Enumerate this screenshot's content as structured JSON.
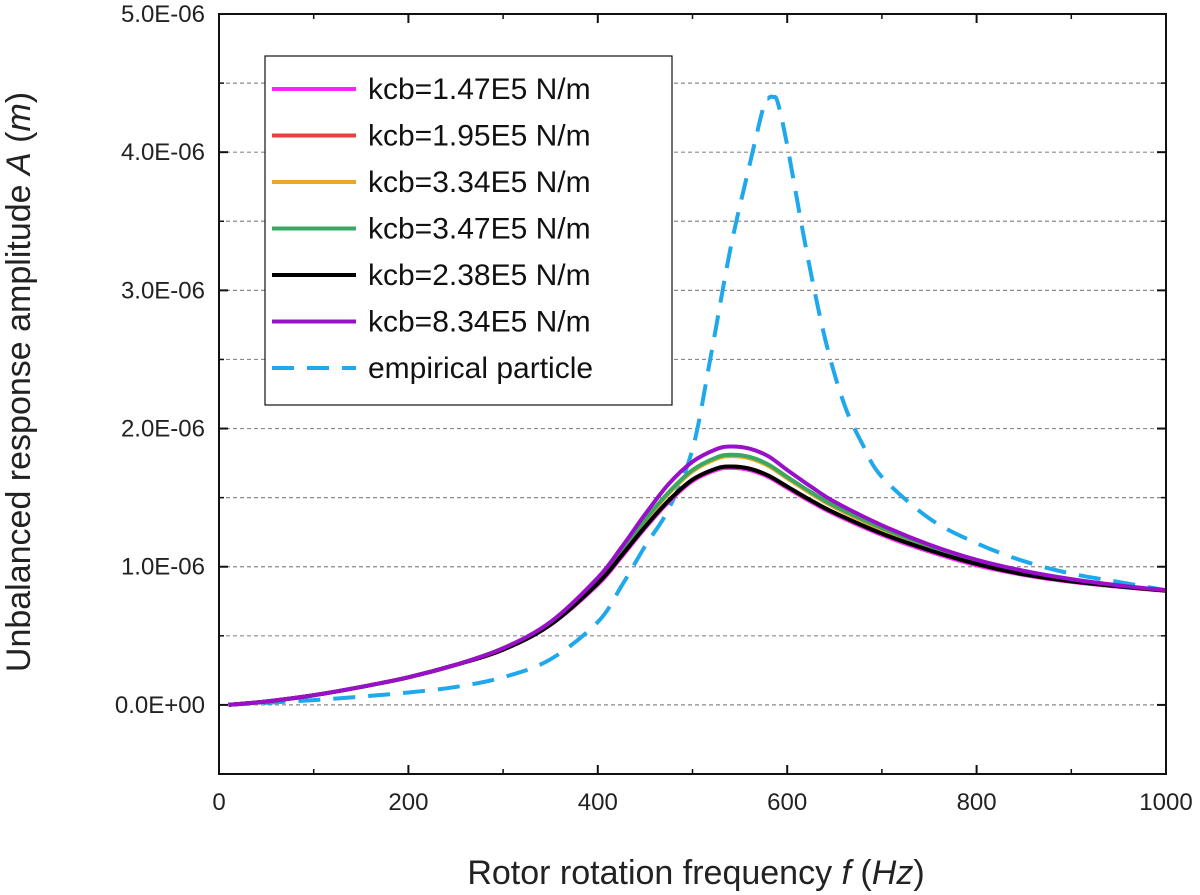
{
  "chart_data": {
    "type": "line",
    "xlabel": {
      "prefix": "Rotor rotation frequency ",
      "var": "f",
      "unit": "Hz"
    },
    "ylabel": {
      "prefix": "Unbalanced response amplitude ",
      "var": "A",
      "unit": "m"
    },
    "xlim": [
      0,
      1000
    ],
    "ylim": [
      -5e-07,
      5e-06
    ],
    "xticks": [
      0,
      200,
      400,
      600,
      800,
      1000
    ],
    "xtick_labels": [
      "0",
      "200",
      "400",
      "600",
      "800",
      "1000"
    ],
    "yticks": [
      0,
      1e-06,
      2e-06,
      3e-06,
      4e-06,
      5e-06
    ],
    "ytick_labels": [
      "0.0E+00",
      "1.0E-06",
      "2.0E-06",
      "3.0E-06",
      "4.0E-06",
      "5.0E-06"
    ],
    "grid": "horizontal dashed",
    "legend_position": "top-left",
    "x": [
      10,
      50,
      100,
      150,
      200,
      250,
      300,
      350,
      400,
      425,
      450,
      475,
      500,
      525,
      540,
      560,
      580,
      600,
      625,
      650,
      700,
      750,
      800,
      850,
      900,
      950,
      1000
    ],
    "series": [
      {
        "name": "kcb=1.47E5 N/m",
        "color": "#ff22ff",
        "dash": "solid",
        "values": [
          1e-09,
          2.5e-08,
          7e-08,
          1.3e-07,
          2e-07,
          2.9e-07,
          4e-07,
          5.8e-07,
          8.7e-07,
          1.07e-06,
          1.28e-06,
          1.47e-06,
          1.62e-06,
          1.7e-06,
          1.715e-06,
          1.7e-06,
          1.65e-06,
          1.57e-06,
          1.47e-06,
          1.38e-06,
          1.23e-06,
          1.11e-06,
          1.01e-06,
          9.4e-07,
          8.9e-07,
          8.55e-07,
          8.25e-07
        ]
      },
      {
        "name": "kcb=1.95E5 N/m",
        "color": "#e8403c",
        "dash": "solid",
        "values": [
          1e-09,
          2.5e-08,
          7e-08,
          1.3e-07,
          2e-07,
          2.9e-07,
          4e-07,
          5.8e-07,
          8.8e-07,
          1.08e-06,
          1.29e-06,
          1.48e-06,
          1.63e-06,
          1.71e-06,
          1.725e-06,
          1.71e-06,
          1.66e-06,
          1.58e-06,
          1.48e-06,
          1.39e-06,
          1.24e-06,
          1.12e-06,
          1.02e-06,
          9.45e-07,
          8.95e-07,
          8.58e-07,
          8.27e-07
        ]
      },
      {
        "name": "kcb=3.34E5 N/m",
        "color": "#e8a823",
        "dash": "solid",
        "values": [
          1e-09,
          2.5e-08,
          7e-08,
          1.3e-07,
          2e-07,
          2.9e-07,
          4.1e-07,
          5.9e-07,
          9e-07,
          1.11e-06,
          1.33e-06,
          1.53e-06,
          1.69e-06,
          1.78e-06,
          1.8e-06,
          1.785e-06,
          1.73e-06,
          1.64e-06,
          1.53e-06,
          1.43e-06,
          1.27e-06,
          1.14e-06,
          1.04e-06,
          9.6e-07,
          9e-07,
          8.6e-07,
          8.28e-07
        ]
      },
      {
        "name": "kcb=3.47E5 N/m",
        "color": "#3aa860",
        "dash": "solid",
        "values": [
          1e-09,
          2.5e-08,
          7e-08,
          1.3e-07,
          2e-07,
          2.9e-07,
          4.1e-07,
          5.9e-07,
          9e-07,
          1.11e-06,
          1.34e-06,
          1.54e-06,
          1.7e-06,
          1.79e-06,
          1.81e-06,
          1.795e-06,
          1.74e-06,
          1.65e-06,
          1.54e-06,
          1.44e-06,
          1.28e-06,
          1.15e-06,
          1.045e-06,
          9.65e-07,
          9.05e-07,
          8.62e-07,
          8.28e-07
        ]
      },
      {
        "name": "kcb=2.38E5 N/m",
        "color": "#000000",
        "dash": "solid",
        "values": [
          1e-09,
          2.5e-08,
          7e-08,
          1.3e-07,
          2e-07,
          2.9e-07,
          4e-07,
          5.8e-07,
          8.8e-07,
          1.08e-06,
          1.29e-06,
          1.48e-06,
          1.63e-06,
          1.71e-06,
          1.725e-06,
          1.71e-06,
          1.66e-06,
          1.58e-06,
          1.48e-06,
          1.39e-06,
          1.24e-06,
          1.12e-06,
          1.02e-06,
          9.45e-07,
          8.95e-07,
          8.58e-07,
          8.27e-07
        ]
      },
      {
        "name": "kcb=8.34E5 N/m",
        "color": "#9a10c8",
        "dash": "solid",
        "values": [
          1e-09,
          2.5e-08,
          7e-08,
          1.3e-07,
          2e-07,
          2.9e-07,
          4.1e-07,
          6e-07,
          9.2e-07,
          1.14e-06,
          1.38e-06,
          1.6e-06,
          1.76e-06,
          1.85e-06,
          1.87e-06,
          1.855e-06,
          1.8e-06,
          1.7e-06,
          1.58e-06,
          1.47e-06,
          1.3e-06,
          1.16e-06,
          1.05e-06,
          9.7e-07,
          9.1e-07,
          8.65e-07,
          8.3e-07
        ]
      }
    ],
    "empirical": {
      "name": "empirical particle",
      "color": "#1fa8ec",
      "dash": "dashed",
      "x": [
        10,
        50,
        100,
        150,
        200,
        250,
        300,
        350,
        400,
        425,
        450,
        475,
        500,
        520,
        540,
        560,
        575,
        580,
        585,
        590,
        600,
        620,
        640,
        660,
        680,
        700,
        750,
        800,
        850,
        900,
        950,
        1000
      ],
      "values": [
        1e-09,
        1.5e-08,
        3.5e-08,
        6e-08,
        9e-08,
        1.3e-07,
        2e-07,
        3.3e-07,
        6e-07,
        8.6e-07,
        1.15e-06,
        1.42e-06,
        1.85e-06,
        2.55e-06,
        3.3e-06,
        3.9e-06,
        4.33e-06,
        4.39e-06,
        4.4e-06,
        4.36e-06,
        4.05e-06,
        3.3e-06,
        2.65e-06,
        2.18e-06,
        1.88e-06,
        1.65e-06,
        1.35e-06,
        1.17e-06,
        1.04e-06,
        9.5e-07,
        8.9e-07,
        8.3e-07
      ]
    }
  }
}
